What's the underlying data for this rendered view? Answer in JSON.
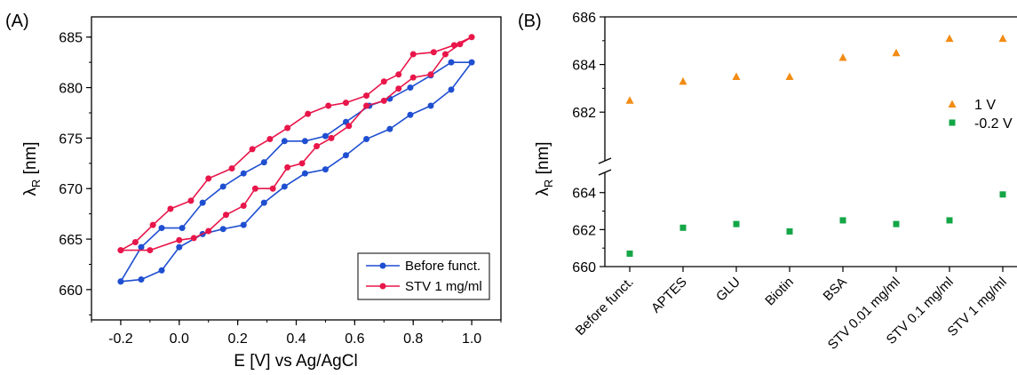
{
  "panels": {
    "a_label": "(A)",
    "b_label": "(B)"
  },
  "chart_data": [
    {
      "type": "line",
      "panel": "(A)",
      "xlabel": "E [V] vs Ag/AgCl",
      "ylabel": "λR [nm]",
      "xlim": [
        -0.3,
        1.1
      ],
      "ylim": [
        657,
        687
      ],
      "xticks": [
        -0.2,
        0.0,
        0.2,
        0.4,
        0.6,
        0.8,
        1.0
      ],
      "xtick_labels": [
        "-0.2",
        "0.0",
        "0.2",
        "0.4",
        "0.6",
        "0.8",
        "1.0"
      ],
      "yticks": [
        660,
        665,
        670,
        675,
        680,
        685
      ],
      "ytick_labels": [
        "660",
        "665",
        "670",
        "675",
        "680",
        "685"
      ],
      "legend_position": "bottom-right",
      "series": [
        {
          "name": "Before funct.",
          "color": "#1f4fd1",
          "x": [
            -0.2,
            -0.13,
            -0.06,
            0.0,
            0.08,
            0.15,
            0.22,
            0.29,
            0.36,
            0.43,
            0.5,
            0.57,
            0.64,
            0.72,
            0.79,
            0.86,
            0.93,
            1.0,
            0.93,
            0.86,
            0.79,
            0.72,
            0.65,
            0.57,
            0.5,
            0.43,
            0.36,
            0.29,
            0.22,
            0.15,
            0.08,
            0.01,
            -0.06,
            -0.13,
            -0.2
          ],
          "y": [
            660.8,
            661.0,
            661.9,
            664.2,
            665.5,
            666.0,
            666.4,
            668.6,
            670.2,
            671.5,
            671.9,
            673.3,
            674.9,
            675.9,
            677.3,
            678.2,
            679.8,
            682.5,
            682.5,
            681.2,
            680.0,
            678.9,
            678.2,
            676.6,
            675.2,
            674.7,
            674.7,
            672.6,
            671.5,
            670.2,
            668.6,
            666.1,
            666.1,
            664.2,
            660.8
          ]
        },
        {
          "name": "STV 1 mg/ml",
          "color": "#e8164a",
          "x": [
            -0.2,
            -0.1,
            0.0,
            0.05,
            0.1,
            0.16,
            0.22,
            0.26,
            0.32,
            0.37,
            0.42,
            0.47,
            0.52,
            0.58,
            0.64,
            0.7,
            0.75,
            0.8,
            0.86,
            0.91,
            0.96,
            1.0,
            0.94,
            0.87,
            0.8,
            0.75,
            0.7,
            0.64,
            0.57,
            0.51,
            0.44,
            0.37,
            0.31,
            0.25,
            0.18,
            0.1,
            0.04,
            -0.03,
            -0.09,
            -0.15,
            -0.2
          ],
          "y": [
            663.9,
            663.9,
            664.9,
            665.1,
            665.8,
            667.4,
            668.3,
            670.0,
            670.0,
            672.1,
            672.5,
            674.2,
            675.0,
            676.2,
            678.2,
            678.7,
            679.9,
            681.0,
            681.3,
            683.3,
            684.3,
            685.0,
            684.2,
            683.5,
            683.3,
            681.3,
            680.6,
            679.2,
            678.5,
            678.2,
            677.4,
            676.0,
            674.9,
            673.9,
            672.0,
            671.0,
            668.8,
            668.0,
            666.4,
            664.7,
            663.9
          ]
        }
      ]
    },
    {
      "type": "scatter",
      "panel": "(B)",
      "ylabel": "λR [nm]",
      "y_axis_break": true,
      "ylim_upper": [
        681,
        686
      ],
      "ylim_lower": [
        660,
        664.9
      ],
      "yticks_upper": [
        682,
        684,
        686
      ],
      "ytick_labels_upper": [
        "682",
        "684",
        "686"
      ],
      "yticks_lower": [
        660,
        662,
        664
      ],
      "ytick_labels_lower": [
        "660",
        "662",
        "664"
      ],
      "categories": [
        "Before funct.",
        "APTES",
        "GLU",
        "Biotin",
        "BSA",
        "STV 0.01 mg/ml",
        "STV 0.1 mg/ml",
        "STV 1 mg/ml"
      ],
      "legend_position": "right",
      "series": [
        {
          "name": "1 V",
          "marker": "triangle",
          "color": "#f28c14",
          "values": [
            682.5,
            683.3,
            683.5,
            683.5,
            684.3,
            684.5,
            685.1,
            685.1
          ]
        },
        {
          "name": "-0.2 V",
          "marker": "square",
          "color": "#14a646",
          "values": [
            660.7,
            662.1,
            662.3,
            661.9,
            662.5,
            662.3,
            662.5,
            663.9
          ]
        }
      ]
    }
  ]
}
